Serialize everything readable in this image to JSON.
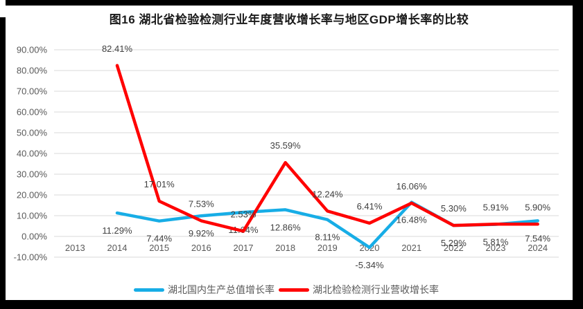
{
  "title": "图16  湖北省检验检测行业年度营收增长率与地区GDP增长率的比较",
  "legend": {
    "items": [
      {
        "label": "湖北国内生产总值增长率",
        "color": "#17ADE6"
      },
      {
        "label": "湖北检验检测行业营收增长率",
        "color": "#FF0000"
      }
    ]
  },
  "chart_data": {
    "type": "line",
    "title": "图16  湖北省检验检测行业年度营收增长率与地区GDP增长率的比较",
    "categories": [
      "2013",
      "2014",
      "2015",
      "2016",
      "2017",
      "2018",
      "2019",
      "2020",
      "2021",
      "2022",
      "2023",
      "2024"
    ],
    "series": [
      {
        "name": "湖北国内生产总值增长率",
        "color": "#17ADE6",
        "label_position": "below",
        "values": [
          null,
          11.29,
          7.44,
          9.92,
          11.64,
          12.86,
          8.11,
          -5.34,
          16.48,
          5.29,
          5.81,
          7.54
        ],
        "labels": [
          null,
          "11.29%",
          "7.44%",
          "9.92%",
          "11.64%",
          "12.86%",
          "8.11%",
          "-5.34%",
          "16.48%",
          "5.29%",
          "5.81%",
          "7.54%"
        ]
      },
      {
        "name": "湖北检验检测行业营收增长率",
        "color": "#FF0000",
        "label_position": "above",
        "values": [
          null,
          82.41,
          17.01,
          7.53,
          2.53,
          35.59,
          12.24,
          6.41,
          16.06,
          5.3,
          5.91,
          5.9
        ],
        "labels": [
          null,
          "82.41%",
          "17.01%",
          "7.53%",
          "2.53%",
          "35.59%",
          "12.24%",
          "6.41%",
          "16.06%",
          "5.30%",
          "5.91%",
          "5.90%"
        ]
      }
    ],
    "xlabel": "",
    "ylabel": "",
    "y_axis": {
      "min": -10,
      "max": 90,
      "step": 10,
      "tick_suffix": "%",
      "tick_decimals": 2
    },
    "grid": true,
    "legend_position": "bottom"
  },
  "style": {
    "gridline_color": "#D9D9D9",
    "axis_text_color": "#595959",
    "data_label_color": "#404040",
    "frame_color": "#000000",
    "background": "#FFFFFF"
  }
}
